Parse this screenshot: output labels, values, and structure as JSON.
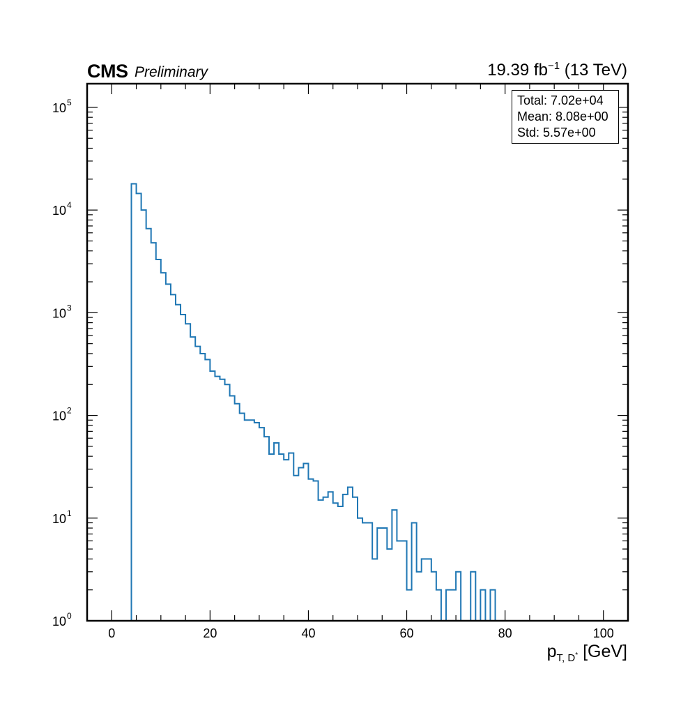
{
  "header": {
    "experiment": "CMS",
    "status": "Preliminary",
    "lumi_value": "19.39 fb",
    "lumi_exponent": "−1",
    "energy": "(13 TeV)"
  },
  "stats_box": {
    "total": "Total: 7.02e+04",
    "mean": "Mean: 8.08e+00",
    "std": "Std: 5.57e+00"
  },
  "xlabel": {
    "base": "p",
    "sub": "T, D",
    "sub_sup": "*",
    "unit": "[GeV]"
  },
  "chart_data": {
    "type": "histogram",
    "style": "step",
    "color": "#1f77b4",
    "xlim": [
      -5,
      105
    ],
    "ylim": [
      1,
      170000
    ],
    "yscale": "log",
    "bin_width": 1,
    "x_ticks": [
      "0",
      "20",
      "40",
      "60",
      "80",
      "100"
    ],
    "x_tick_values": [
      0,
      20,
      40,
      60,
      80,
      100
    ],
    "y_ticks": [
      {
        "value": 1,
        "base": "10",
        "exp": "0"
      },
      {
        "value": 10,
        "base": "10",
        "exp": "1"
      },
      {
        "value": 100,
        "base": "10",
        "exp": "2"
      },
      {
        "value": 1000,
        "base": "10",
        "exp": "3"
      },
      {
        "value": 10000,
        "base": "10",
        "exp": "4"
      },
      {
        "value": 100000,
        "base": "10",
        "exp": "5"
      }
    ],
    "bins": [
      {
        "x0": 4,
        "count": 18000
      },
      {
        "x0": 5,
        "count": 14500
      },
      {
        "x0": 6,
        "count": 10000
      },
      {
        "x0": 7,
        "count": 6600
      },
      {
        "x0": 8,
        "count": 4800
      },
      {
        "x0": 9,
        "count": 3300
      },
      {
        "x0": 10,
        "count": 2450
      },
      {
        "x0": 11,
        "count": 1900
      },
      {
        "x0": 12,
        "count": 1500
      },
      {
        "x0": 13,
        "count": 1200
      },
      {
        "x0": 14,
        "count": 960
      },
      {
        "x0": 15,
        "count": 780
      },
      {
        "x0": 16,
        "count": 580
      },
      {
        "x0": 17,
        "count": 470
      },
      {
        "x0": 18,
        "count": 400
      },
      {
        "x0": 19,
        "count": 350
      },
      {
        "x0": 20,
        "count": 270
      },
      {
        "x0": 21,
        "count": 240
      },
      {
        "x0": 22,
        "count": 225
      },
      {
        "x0": 23,
        "count": 200
      },
      {
        "x0": 24,
        "count": 155
      },
      {
        "x0": 25,
        "count": 130
      },
      {
        "x0": 26,
        "count": 105
      },
      {
        "x0": 27,
        "count": 90
      },
      {
        "x0": 28,
        "count": 90
      },
      {
        "x0": 29,
        "count": 85
      },
      {
        "x0": 30,
        "count": 76
      },
      {
        "x0": 31,
        "count": 62
      },
      {
        "x0": 32,
        "count": 42
      },
      {
        "x0": 33,
        "count": 54
      },
      {
        "x0": 34,
        "count": 42
      },
      {
        "x0": 35,
        "count": 37
      },
      {
        "x0": 36,
        "count": 43
      },
      {
        "x0": 37,
        "count": 26
      },
      {
        "x0": 38,
        "count": 31
      },
      {
        "x0": 39,
        "count": 34
      },
      {
        "x0": 40,
        "count": 24
      },
      {
        "x0": 41,
        "count": 23
      },
      {
        "x0": 42,
        "count": 15
      },
      {
        "x0": 43,
        "count": 16
      },
      {
        "x0": 44,
        "count": 18
      },
      {
        "x0": 45,
        "count": 14
      },
      {
        "x0": 46,
        "count": 13
      },
      {
        "x0": 47,
        "count": 17
      },
      {
        "x0": 48,
        "count": 20
      },
      {
        "x0": 49,
        "count": 16
      },
      {
        "x0": 50,
        "count": 10
      },
      {
        "x0": 51,
        "count": 9
      },
      {
        "x0": 52,
        "count": 9
      },
      {
        "x0": 53,
        "count": 4
      },
      {
        "x0": 54,
        "count": 8
      },
      {
        "x0": 55,
        "count": 8
      },
      {
        "x0": 56,
        "count": 5
      },
      {
        "x0": 57,
        "count": 12
      },
      {
        "x0": 58,
        "count": 6
      },
      {
        "x0": 59,
        "count": 6
      },
      {
        "x0": 60,
        "count": 2
      },
      {
        "x0": 61,
        "count": 9
      },
      {
        "x0": 62,
        "count": 3
      },
      {
        "x0": 63,
        "count": 4
      },
      {
        "x0": 64,
        "count": 4
      },
      {
        "x0": 65,
        "count": 3
      },
      {
        "x0": 66,
        "count": 2
      },
      {
        "x0": 67,
        "count": 0
      },
      {
        "x0": 68,
        "count": 2
      },
      {
        "x0": 69,
        "count": 2
      },
      {
        "x0": 70,
        "count": 3
      },
      {
        "x0": 71,
        "count": 0
      },
      {
        "x0": 72,
        "count": 0
      },
      {
        "x0": 73,
        "count": 3
      },
      {
        "x0": 74,
        "count": 0
      },
      {
        "x0": 75,
        "count": 2
      },
      {
        "x0": 76,
        "count": 0
      },
      {
        "x0": 77,
        "count": 2
      },
      {
        "x0": 78,
        "count": 0
      }
    ]
  }
}
